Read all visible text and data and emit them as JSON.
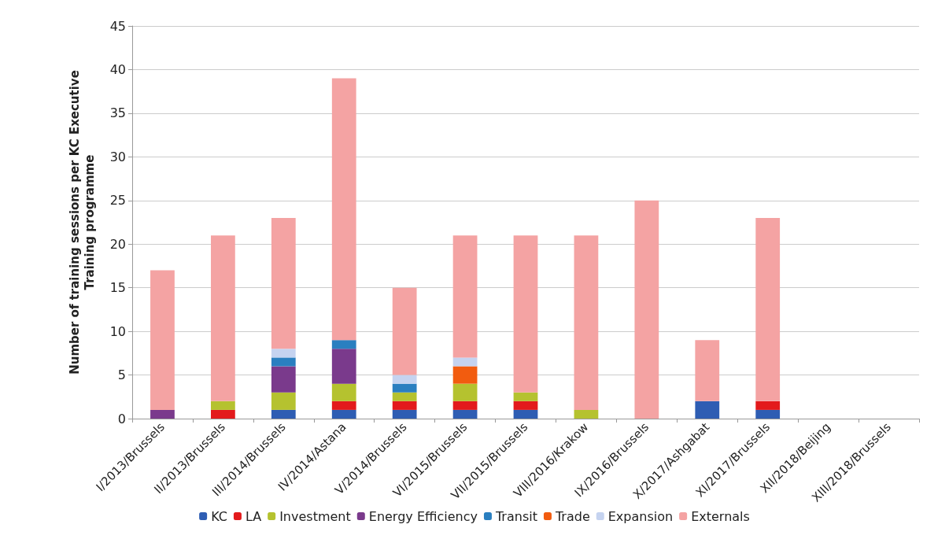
{
  "chart_data": {
    "type": "bar",
    "stacked": true,
    "ylabel": "Number of training sessions per KC Executive\nTraining programme",
    "categories": [
      "I/2013/Brussels",
      "II/2013/Brussels",
      "III/2014/Brussels",
      "IV/2014/Astana",
      "V/2014/Brussels",
      "VI/2015/Brussels",
      "VII/2015/Brussels",
      "VIII/2016/Krakow",
      "IX/2016/Brussels",
      "X/2017/Ashgabat",
      "XI/2017/Brussels",
      "XII/2018/Beijing",
      "XIII/2018/Brussels"
    ],
    "series": [
      {
        "name": "KC",
        "color": "#2e5db3",
        "values": [
          0,
          0,
          1,
          1,
          1,
          1,
          1,
          0,
          0,
          2,
          1,
          0,
          0
        ]
      },
      {
        "name": "LA",
        "color": "#e31a1c",
        "values": [
          0,
          1,
          0,
          1,
          1,
          1,
          1,
          0,
          0,
          0,
          1,
          0,
          0
        ]
      },
      {
        "name": "Investment",
        "color": "#b5c22f",
        "values": [
          0,
          1,
          2,
          2,
          1,
          2,
          1,
          1,
          0,
          0,
          0,
          0,
          0
        ]
      },
      {
        "name": "Energy Efficiency",
        "color": "#7a3a8c",
        "values": [
          1,
          0,
          3,
          4,
          0,
          0,
          0,
          0,
          0,
          0,
          0,
          0,
          0
        ]
      },
      {
        "name": "Transit",
        "color": "#2a7fc0",
        "values": [
          0,
          0,
          1,
          1,
          1,
          0,
          0,
          0,
          0,
          0,
          0,
          0,
          0
        ]
      },
      {
        "name": "Trade",
        "color": "#f25c0f",
        "values": [
          0,
          0,
          0,
          0,
          0,
          2,
          0,
          0,
          0,
          0,
          0,
          0,
          0
        ]
      },
      {
        "name": "Expansion",
        "color": "#c5d3f0",
        "values": [
          0,
          0,
          1,
          0,
          1,
          1,
          0,
          0,
          0,
          0,
          0,
          0,
          0
        ]
      },
      {
        "name": "Externals",
        "color": "#f4a3a3",
        "values": [
          16,
          19,
          15,
          30,
          10,
          14,
          18,
          20,
          25,
          7,
          21,
          0,
          0
        ]
      }
    ],
    "ylim": [
      0,
      45
    ],
    "yticks": [
      0,
      5,
      10,
      15,
      20,
      25,
      30,
      35,
      40,
      45
    ],
    "grid": "y",
    "legend": "bottom"
  }
}
